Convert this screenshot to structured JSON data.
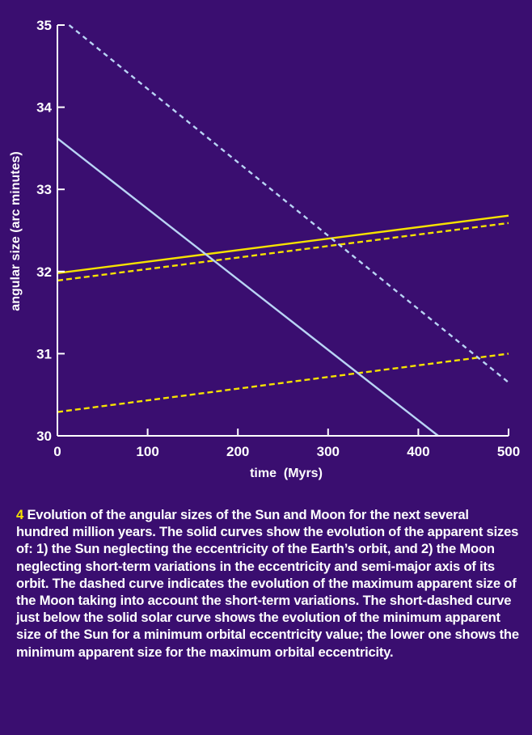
{
  "colors": {
    "background": "#3a0e70",
    "sun": "#f6e200",
    "moon": "#b9d4f5",
    "text": "#ffffff",
    "figure_number": "#f6e200"
  },
  "chart_data": {
    "type": "line",
    "xlabel": "time  (Myrs)",
    "ylabel": "angular size (arc minutes)",
    "xlim": [
      0,
      500
    ],
    "ylim": [
      30,
      35
    ],
    "x_ticks": [
      "0",
      "100",
      "200",
      "300",
      "400",
      "500"
    ],
    "y_ticks": [
      "30",
      "31",
      "32",
      "33",
      "34",
      "35"
    ],
    "grid": false,
    "series": [
      {
        "body": "sun",
        "style": "solid",
        "color": "#f6e200",
        "points": [
          [
            0,
            31.98
          ],
          [
            500,
            32.68
          ]
        ]
      },
      {
        "body": "sun",
        "style": "short-dashed",
        "color": "#f6e200",
        "points": [
          [
            0,
            31.89
          ],
          [
            500,
            32.59
          ]
        ]
      },
      {
        "body": "sun",
        "style": "short-dashed",
        "color": "#f6e200",
        "points": [
          [
            0,
            30.29
          ],
          [
            500,
            31.0
          ]
        ]
      },
      {
        "body": "moon",
        "style": "solid",
        "color": "#b9d4f5",
        "points": [
          [
            0,
            33.62
          ],
          [
            422,
            30.0
          ]
        ]
      },
      {
        "body": "moon",
        "style": "dashed",
        "color": "#b9d4f5",
        "points": [
          [
            13,
            35.0
          ],
          [
            500,
            30.65
          ]
        ]
      }
    ]
  },
  "caption": {
    "number": "4",
    "text": " Evolution of the angular sizes of the Sun and Moon for the next several hundred million years. The solid curves show the evolution of the apparent sizes of: 1) the Sun neglecting the eccentricity of the Earth’s orbit, and 2) the Moon neglecting short-term variations in the eccentricity and semi-major axis of its orbit. The dashed curve indicates the evolution of the maximum apparent size of the Moon taking into account the short-term variations. The short-dashed curve just below the solid solar curve shows the evolution of the minimum apparent size of the Sun for a minimum orbital eccentricity value; the lower one shows the minimum apparent size for the maximum orbital eccentricity."
  }
}
